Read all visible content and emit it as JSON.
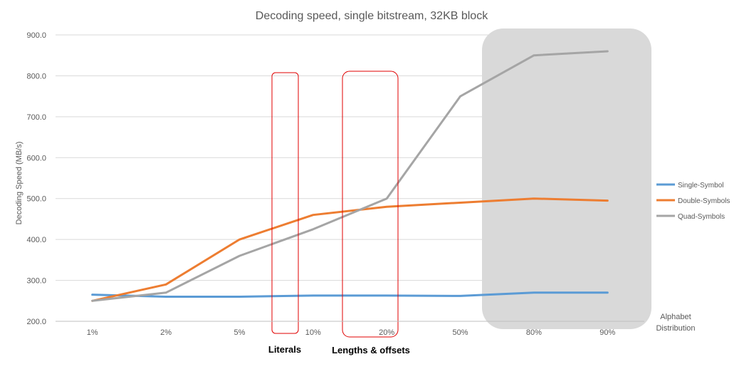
{
  "chart_data": {
    "type": "line",
    "title": "Decoding speed, single bitstream, 32KB block",
    "ylabel": "Decoding Speed (MB/s)",
    "xlabel_lines": [
      "Alphabet",
      "Distribution"
    ],
    "categories": [
      "1%",
      "2%",
      "5%",
      "10%",
      "20%",
      "50%",
      "80%",
      "90%"
    ],
    "ylim": [
      200,
      900
    ],
    "yticks": [
      200,
      300,
      400,
      500,
      600,
      700,
      800,
      900
    ],
    "ytick_labels": [
      "200.0",
      "300.0",
      "400.0",
      "500.0",
      "600.0",
      "700.0",
      "800.0",
      "900.0"
    ],
    "grid": true,
    "legend_position": "right",
    "series": [
      {
        "name": "Single-Symbol",
        "color": "#5b9bd5",
        "values": [
          265,
          260,
          260,
          263,
          263,
          262,
          270,
          270
        ]
      },
      {
        "name": "Double-Symbols",
        "color": "#ed7d31",
        "values": [
          250,
          290,
          400,
          460,
          480,
          490,
          500,
          495
        ]
      },
      {
        "name": "Quad-Symbols",
        "color": "#a5a5a5",
        "values": [
          250,
          270,
          360,
          425,
          500,
          750,
          850,
          860
        ]
      }
    ],
    "annotations": [
      {
        "label": "Literals",
        "color": "#e00000"
      },
      {
        "label": "Lengths & offsets",
        "color": "#e00000"
      }
    ],
    "shaded_region_color": "#d9d9d9"
  }
}
